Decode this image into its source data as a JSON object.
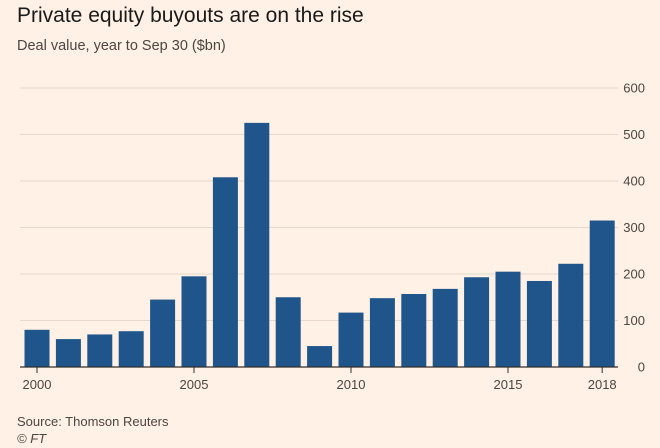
{
  "title": "Private equity buyouts are on the rise",
  "subtitle": "Deal value, year to Sep 30 ($bn)",
  "source": "Source: Thomson Reuters",
  "credit": "© FT",
  "colors": {
    "bar": "#1f558b",
    "background": "#fff1e5",
    "grid": "#e3d9cf",
    "axis": "#33302e"
  },
  "chart_data": {
    "type": "bar",
    "categories": [
      "2000",
      "2001",
      "2002",
      "2003",
      "2004",
      "2005",
      "2006",
      "2007",
      "2008",
      "2009",
      "2010",
      "2011",
      "2012",
      "2013",
      "2014",
      "2015",
      "2016",
      "2017",
      "2018"
    ],
    "values": [
      80,
      60,
      70,
      77,
      145,
      195,
      408,
      525,
      150,
      45,
      117,
      148,
      157,
      168,
      193,
      205,
      185,
      222,
      315
    ],
    "xtick_labels": [
      "2000",
      "2005",
      "2010",
      "2015",
      "2018"
    ],
    "yticks": [
      0,
      100,
      200,
      300,
      400,
      500,
      600
    ],
    "ylim": [
      0,
      600
    ],
    "grid": true,
    "y_axis_position": "right",
    "xlabel": "",
    "ylabel": ""
  }
}
